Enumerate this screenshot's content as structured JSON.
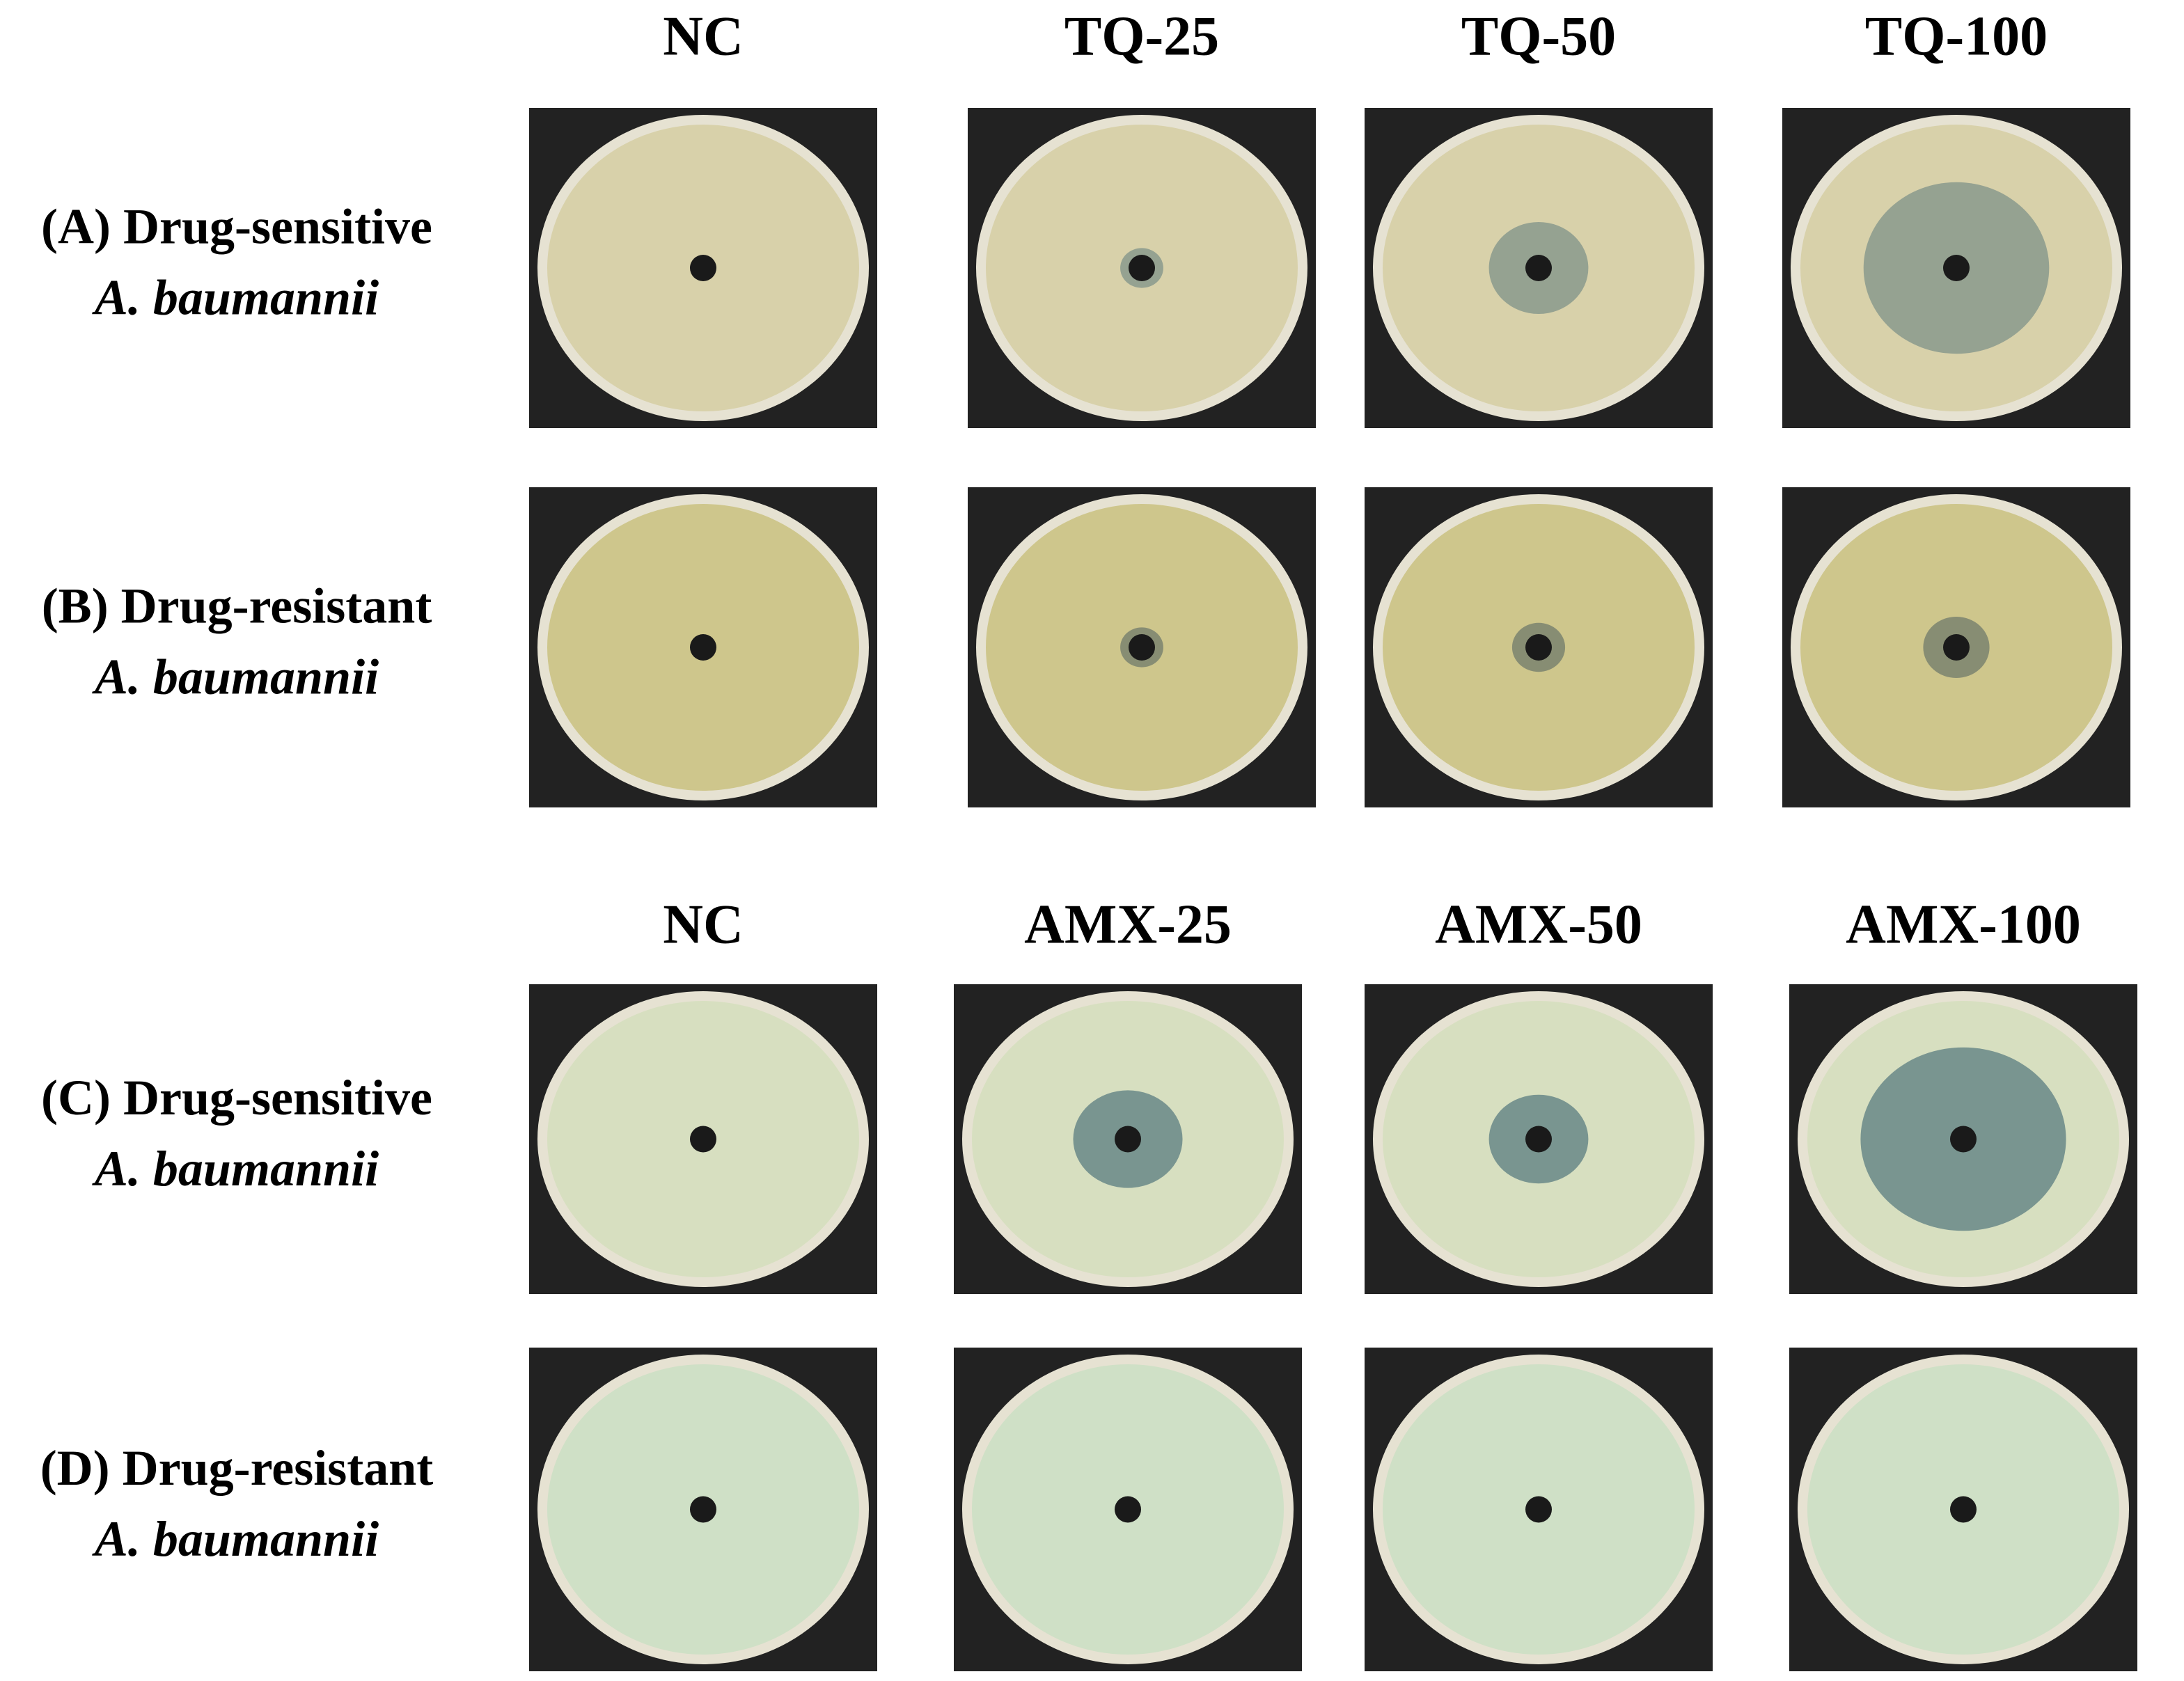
{
  "panels": [
    {
      "columns": [
        "NC",
        "TQ-25",
        "TQ-50",
        "TQ-100"
      ],
      "rows": [
        {
          "label": "(A) Drug-sensitive",
          "organism": "A. baumannii"
        },
        {
          "label": "(B) Drug-resistant",
          "organism": "A. baumannii"
        }
      ]
    },
    {
      "columns": [
        "NC",
        "AMX-25",
        "AMX-50",
        "AMX-100"
      ],
      "rows": [
        {
          "label": "(C) Drug-sensitive",
          "organism": "A. baumannii"
        },
        {
          "label": "(D) Drug-resistant",
          "organism": "A. baumannii"
        }
      ]
    }
  ]
}
